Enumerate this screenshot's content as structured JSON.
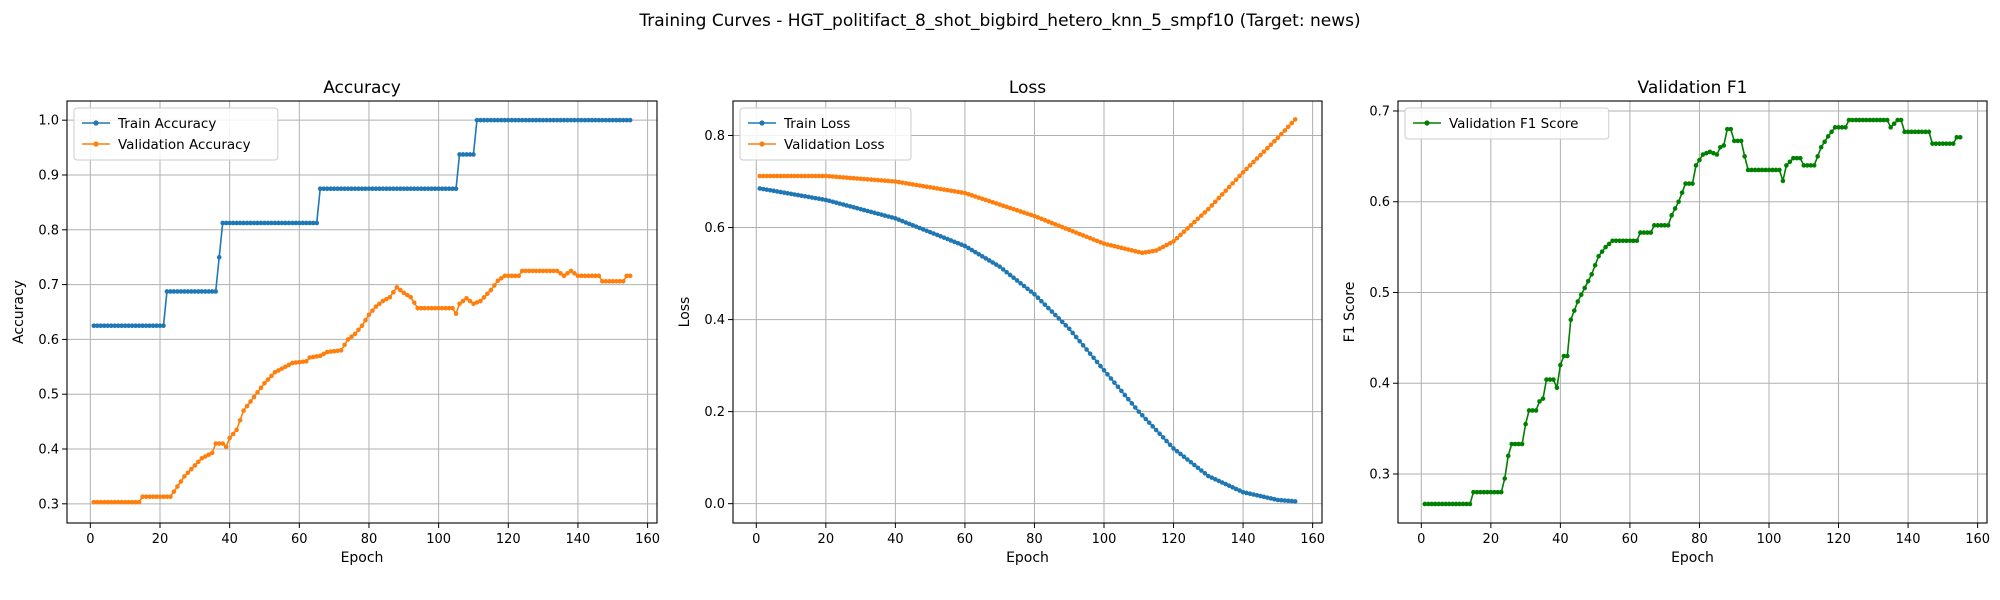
{
  "figure": {
    "suptitle": "Training Curves - HGT_politifact_8_shot_bigbird_hetero_knn_5_smpf10 (Target: news)"
  },
  "chart_data": [
    {
      "type": "line",
      "title": "Accuracy",
      "xlabel": "Epoch",
      "ylabel": "Accuracy",
      "xlim": [
        -6.7,
        162.7
      ],
      "ylim": [
        0.265,
        1.035
      ],
      "xticks": [
        0,
        20,
        40,
        60,
        80,
        100,
        120,
        140,
        160
      ],
      "yticks": [
        0.3,
        0.4,
        0.5,
        0.6,
        0.7,
        0.8,
        0.9,
        1.0
      ],
      "ytick_decimals": 1,
      "grid": true,
      "legend": "upper left",
      "series": [
        {
          "name": "Train Accuracy",
          "color": "#1f77b4",
          "steps": [
            [
              1,
              0.625
            ],
            [
              22,
              0.6875
            ],
            [
              37,
              0.75
            ],
            [
              38,
              0.8125
            ],
            [
              66,
              0.875
            ],
            [
              106,
              0.9375
            ],
            [
              111,
              1.0
            ]
          ],
          "x_end": 155
        },
        {
          "name": "Validation Accuracy",
          "color": "#ff7f0e",
          "points": [
            [
              1,
              0.303
            ],
            [
              14,
              0.303
            ],
            [
              15,
              0.313
            ],
            [
              23,
              0.313
            ],
            [
              27,
              0.35
            ],
            [
              30,
              0.37
            ],
            [
              32,
              0.383
            ],
            [
              35,
              0.393
            ],
            [
              36,
              0.41
            ],
            [
              38,
              0.41
            ],
            [
              39,
              0.404
            ],
            [
              40,
              0.42
            ],
            [
              42,
              0.435
            ],
            [
              44,
              0.47
            ],
            [
              47,
              0.495
            ],
            [
              50,
              0.52
            ],
            [
              53,
              0.54
            ],
            [
              56,
              0.55
            ],
            [
              58,
              0.557
            ],
            [
              62,
              0.56
            ],
            [
              63,
              0.567
            ],
            [
              66,
              0.57
            ],
            [
              68,
              0.577
            ],
            [
              72,
              0.58
            ],
            [
              74,
              0.6
            ],
            [
              76,
              0.61
            ],
            [
              78,
              0.625
            ],
            [
              80,
              0.645
            ],
            [
              82,
              0.66
            ],
            [
              84,
              0.67
            ],
            [
              86,
              0.677
            ],
            [
              88,
              0.695
            ],
            [
              90,
              0.685
            ],
            [
              92,
              0.677
            ],
            [
              94,
              0.657
            ],
            [
              104,
              0.657
            ],
            [
              105,
              0.647
            ],
            [
              106,
              0.665
            ],
            [
              108,
              0.675
            ],
            [
              110,
              0.665
            ],
            [
              112,
              0.67
            ],
            [
              115,
              0.69
            ],
            [
              117,
              0.707
            ],
            [
              119,
              0.716
            ],
            [
              123,
              0.716
            ],
            [
              124,
              0.725
            ],
            [
              134,
              0.725
            ],
            [
              136,
              0.716
            ],
            [
              138,
              0.725
            ],
            [
              140,
              0.716
            ],
            [
              146,
              0.716
            ],
            [
              147,
              0.706
            ],
            [
              153,
              0.706
            ],
            [
              154,
              0.716
            ],
            [
              155,
              0.716
            ]
          ]
        }
      ]
    },
    {
      "type": "line",
      "title": "Loss",
      "xlabel": "Epoch",
      "ylabel": "Loss",
      "xlim": [
        -6.7,
        162.7
      ],
      "ylim": [
        -0.042,
        0.875
      ],
      "xticks": [
        0,
        20,
        40,
        60,
        80,
        100,
        120,
        140,
        160
      ],
      "yticks": [
        0.0,
        0.2,
        0.4,
        0.6,
        0.8
      ],
      "ytick_decimals": 1,
      "grid": true,
      "legend": "upper left",
      "series": [
        {
          "name": "Train Loss",
          "color": "#1f77b4",
          "points": [
            [
              1,
              0.685
            ],
            [
              20,
              0.66
            ],
            [
              40,
              0.62
            ],
            [
              60,
              0.56
            ],
            [
              70,
              0.515
            ],
            [
              80,
              0.455
            ],
            [
              90,
              0.38
            ],
            [
              100,
              0.29
            ],
            [
              110,
              0.2
            ],
            [
              120,
              0.12
            ],
            [
              130,
              0.06
            ],
            [
              140,
              0.025
            ],
            [
              150,
              0.008
            ],
            [
              155,
              0.005
            ]
          ]
        },
        {
          "name": "Validation Loss",
          "color": "#ff7f0e",
          "points": [
            [
              1,
              0.712
            ],
            [
              20,
              0.712
            ],
            [
              40,
              0.7
            ],
            [
              60,
              0.675
            ],
            [
              80,
              0.625
            ],
            [
              100,
              0.565
            ],
            [
              111,
              0.545
            ],
            [
              115,
              0.55
            ],
            [
              120,
              0.57
            ],
            [
              130,
              0.64
            ],
            [
              140,
              0.72
            ],
            [
              150,
              0.795
            ],
            [
              155,
              0.835
            ]
          ]
        }
      ]
    },
    {
      "type": "line",
      "title": "Validation F1",
      "xlabel": "Epoch",
      "ylabel": "F1 Score",
      "xlim": [
        -6.7,
        162.7
      ],
      "ylim": [
        0.246,
        0.711
      ],
      "xticks": [
        0,
        20,
        40,
        60,
        80,
        100,
        120,
        140,
        160
      ],
      "yticks": [
        0.3,
        0.4,
        0.5,
        0.6,
        0.7
      ],
      "ytick_decimals": 1,
      "grid": true,
      "legend": "upper left",
      "series": [
        {
          "name": "Validation F1 Score",
          "color": "#008000",
          "points": [
            [
              1,
              0.267
            ],
            [
              14,
              0.267
            ],
            [
              15,
              0.28
            ],
            [
              23,
              0.28
            ],
            [
              24,
              0.295
            ],
            [
              25,
              0.32
            ],
            [
              26,
              0.333
            ],
            [
              29,
              0.333
            ],
            [
              30,
              0.355
            ],
            [
              31,
              0.37
            ],
            [
              33,
              0.37
            ],
            [
              34,
              0.38
            ],
            [
              35,
              0.383
            ],
            [
              36,
              0.404
            ],
            [
              38,
              0.404
            ],
            [
              39,
              0.395
            ],
            [
              40,
              0.42
            ],
            [
              41,
              0.43
            ],
            [
              42,
              0.43
            ],
            [
              43,
              0.47
            ],
            [
              45,
              0.49
            ],
            [
              47,
              0.505
            ],
            [
              49,
              0.52
            ],
            [
              51,
              0.54
            ],
            [
              53,
              0.55
            ],
            [
              55,
              0.557
            ],
            [
              62,
              0.557
            ],
            [
              63,
              0.566
            ],
            [
              66,
              0.566
            ],
            [
              67,
              0.574
            ],
            [
              71,
              0.574
            ],
            [
              72,
              0.585
            ],
            [
              74,
              0.6
            ],
            [
              76,
              0.62
            ],
            [
              78,
              0.62
            ],
            [
              79,
              0.64
            ],
            [
              81,
              0.652
            ],
            [
              83,
              0.655
            ],
            [
              85,
              0.652
            ],
            [
              86,
              0.66
            ],
            [
              87,
              0.662
            ],
            [
              88,
              0.68
            ],
            [
              89,
              0.68
            ],
            [
              90,
              0.667
            ],
            [
              92,
              0.667
            ],
            [
              93,
              0.65
            ],
            [
              94,
              0.635
            ],
            [
              103,
              0.635
            ],
            [
              104,
              0.623
            ],
            [
              105,
              0.64
            ],
            [
              107,
              0.648
            ],
            [
              109,
              0.648
            ],
            [
              110,
              0.64
            ],
            [
              113,
              0.64
            ],
            [
              114,
              0.65
            ],
            [
              115,
              0.66
            ],
            [
              117,
              0.672
            ],
            [
              119,
              0.682
            ],
            [
              122,
              0.682
            ],
            [
              123,
              0.69
            ],
            [
              134,
              0.69
            ],
            [
              135,
              0.682
            ],
            [
              137,
              0.69
            ],
            [
              138,
              0.69
            ],
            [
              139,
              0.677
            ],
            [
              146,
              0.677
            ],
            [
              147,
              0.664
            ],
            [
              153,
              0.664
            ],
            [
              154,
              0.671
            ],
            [
              155,
              0.671
            ]
          ]
        }
      ]
    }
  ]
}
